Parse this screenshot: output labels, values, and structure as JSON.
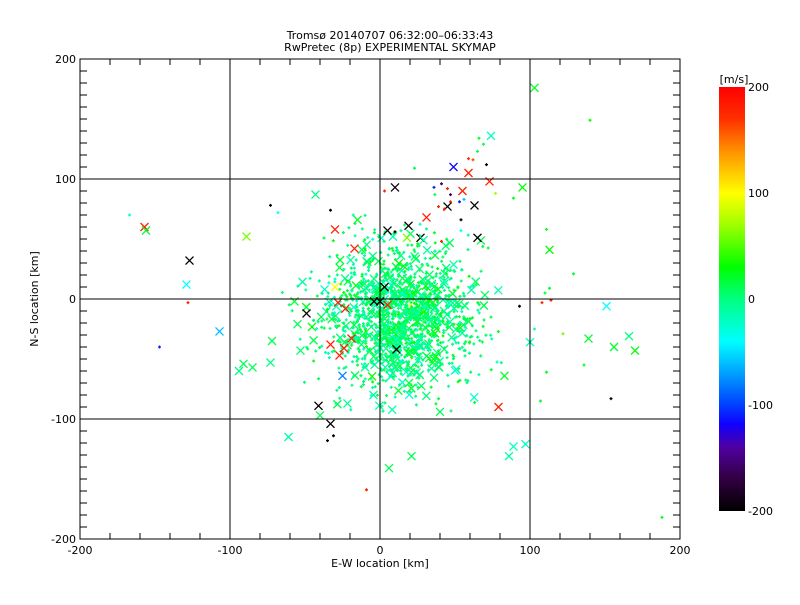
{
  "chart_data": {
    "type": "scatter",
    "title": "Tromsø 20140707 06:32:00–06:33:43",
    "subtitle": "RwPretec (8p) EXPERIMENTAL SKYMAP",
    "xlabel": "E-W location [km]",
    "ylabel": "N-S location [km]",
    "xlim": [
      -200,
      200
    ],
    "ylim": [
      -200,
      200
    ],
    "xticks": [
      "-200",
      "-100",
      "0",
      "100",
      "200"
    ],
    "yticks": [
      "-200",
      "-100",
      "0",
      "100",
      "200"
    ],
    "xtick_values": [
      -200,
      -100,
      0,
      100,
      200
    ],
    "ytick_values": [
      -200,
      -100,
      0,
      100,
      200
    ],
    "grid": true,
    "colorbar": {
      "label": "[m/s]",
      "range": [
        -200,
        200
      ],
      "ticks": [
        "200",
        "100",
        "0",
        "-100",
        "-200"
      ],
      "tick_values": [
        200,
        100,
        0,
        -100,
        -200
      ],
      "colormap": [
        [
          -200,
          "#000000"
        ],
        [
          -170,
          "#300040"
        ],
        [
          -140,
          "#5000a0"
        ],
        [
          -118,
          "#1000ff"
        ],
        [
          -100,
          "#0040ff"
        ],
        [
          -70,
          "#00a0ff"
        ],
        [
          -40,
          "#00ffff"
        ],
        [
          0,
          "#00ff80"
        ],
        [
          30,
          "#00ff00"
        ],
        [
          70,
          "#a0ff00"
        ],
        [
          100,
          "#ffff00"
        ],
        [
          140,
          "#ff9000"
        ],
        [
          170,
          "#ff3000"
        ],
        [
          200,
          "#ff0000"
        ]
      ]
    },
    "points_columns": [
      "x_km",
      "y_km",
      "velocity_mps",
      "marker"
    ],
    "points": [
      [
        -157,
        60,
        180,
        "x"
      ],
      [
        -156,
        57,
        20,
        "x"
      ],
      [
        -127,
        32,
        -200,
        "x"
      ],
      [
        -129,
        12,
        -40,
        "x"
      ],
      [
        -167,
        70,
        -30,
        "+"
      ],
      [
        -43,
        87,
        0,
        "x"
      ],
      [
        -73,
        78,
        -200,
        "+"
      ],
      [
        -68,
        72,
        -40,
        "+"
      ],
      [
        -33,
        74,
        -200,
        "+"
      ],
      [
        -15,
        66,
        20,
        "x"
      ],
      [
        -30,
        58,
        180,
        "x"
      ],
      [
        -89,
        52,
        60,
        "x"
      ],
      [
        -17,
        42,
        180,
        "x"
      ],
      [
        -30,
        10,
        100,
        "x"
      ],
      [
        103,
        176,
        20,
        "x"
      ],
      [
        140,
        149,
        30,
        "+"
      ],
      [
        74,
        136,
        -20,
        "x"
      ],
      [
        66,
        134,
        20,
        "+"
      ],
      [
        69,
        129,
        10,
        "+"
      ],
      [
        65,
        123,
        10,
        "+"
      ],
      [
        59,
        117,
        170,
        "+"
      ],
      [
        62,
        116,
        160,
        "+"
      ],
      [
        49,
        110,
        -115,
        "x"
      ],
      [
        59,
        105,
        180,
        "x"
      ],
      [
        73,
        98,
        180,
        "x"
      ],
      [
        71,
        112,
        -200,
        "+"
      ],
      [
        23,
        109,
        10,
        "+"
      ],
      [
        10,
        93,
        -190,
        "x"
      ],
      [
        36,
        93,
        -110,
        "+"
      ],
      [
        41,
        96,
        -160,
        "+"
      ],
      [
        45,
        92,
        180,
        "+"
      ],
      [
        47,
        87,
        -160,
        "+"
      ],
      [
        55,
        90,
        180,
        "x"
      ],
      [
        3,
        90,
        180,
        "+"
      ],
      [
        95,
        93,
        30,
        "x"
      ],
      [
        77,
        88,
        70,
        "+"
      ],
      [
        89,
        84,
        20,
        "+"
      ],
      [
        53,
        81,
        -110,
        "+"
      ],
      [
        56,
        83,
        -60,
        "+"
      ],
      [
        47,
        81,
        170,
        "+"
      ],
      [
        45,
        77,
        -200,
        "x"
      ],
      [
        43,
        75,
        180,
        "+"
      ],
      [
        39,
        77,
        180,
        "+"
      ],
      [
        63,
        78,
        -200,
        "x"
      ],
      [
        31,
        68,
        180,
        "x"
      ],
      [
        54,
        66,
        -200,
        "+"
      ],
      [
        19,
        61,
        -200,
        "x"
      ],
      [
        5,
        57,
        -200,
        "x"
      ],
      [
        10,
        56,
        -200,
        "+"
      ],
      [
        18,
        51,
        60,
        "x"
      ],
      [
        27,
        51,
        -200,
        "x"
      ],
      [
        29,
        49,
        -10,
        "x"
      ],
      [
        65,
        51,
        -200,
        "x"
      ],
      [
        54,
        57,
        -40,
        "+"
      ],
      [
        41,
        48,
        180,
        "+"
      ],
      [
        111,
        58,
        20,
        "+"
      ],
      [
        113,
        41,
        30,
        "x"
      ],
      [
        129,
        21,
        20,
        "+"
      ],
      [
        113,
        9,
        20,
        "+"
      ],
      [
        110,
        5,
        20,
        "+"
      ],
      [
        -128,
        -3,
        180,
        "+"
      ],
      [
        -107,
        -27,
        -60,
        "x"
      ],
      [
        -147,
        -40,
        -110,
        "+"
      ],
      [
        -72,
        -35,
        10,
        "x"
      ],
      [
        -53,
        -43,
        5,
        "x"
      ],
      [
        -73,
        -53,
        0,
        "x"
      ],
      [
        -91,
        -54,
        10,
        "x"
      ],
      [
        -94,
        -60,
        0,
        "x"
      ],
      [
        -85,
        -57,
        10,
        "x"
      ],
      [
        -55,
        -21,
        10,
        "x"
      ],
      [
        -57,
        -2,
        20,
        "x"
      ],
      [
        -49,
        -12,
        -200,
        "x"
      ],
      [
        -33,
        -38,
        180,
        "x"
      ],
      [
        -27,
        -47,
        180,
        "x"
      ],
      [
        -24,
        -41,
        180,
        "x"
      ],
      [
        -19,
        -33,
        180,
        "x"
      ],
      [
        -28,
        -3,
        180,
        "x"
      ],
      [
        -23,
        -8,
        180,
        "x"
      ],
      [
        -25,
        -64,
        -80,
        "x"
      ],
      [
        -41,
        -89,
        -200,
        "x"
      ],
      [
        -33,
        -104,
        -200,
        "x"
      ],
      [
        -31,
        -114,
        -200,
        "+"
      ],
      [
        -35,
        -118,
        -200,
        "+"
      ],
      [
        -61,
        -115,
        -10,
        "x"
      ],
      [
        -9,
        -159,
        180,
        "+"
      ],
      [
        -40,
        -97,
        10,
        "x"
      ],
      [
        151,
        -6,
        -40,
        "x"
      ],
      [
        108,
        -3,
        180,
        "+"
      ],
      [
        114,
        -1,
        180,
        "+"
      ],
      [
        93,
        -6,
        -200,
        "+"
      ],
      [
        122,
        -29,
        60,
        "+"
      ],
      [
        139,
        -33,
        20,
        "x"
      ],
      [
        166,
        -31,
        0,
        "x"
      ],
      [
        156,
        -40,
        20,
        "x"
      ],
      [
        170,
        -43,
        30,
        "x"
      ],
      [
        136,
        -55,
        20,
        "+"
      ],
      [
        111,
        -61,
        20,
        "+"
      ],
      [
        107,
        -85,
        20,
        "+"
      ],
      [
        154,
        -83,
        -200,
        "+"
      ],
      [
        100,
        -36,
        -20,
        "x"
      ],
      [
        103,
        -25,
        -10,
        "+"
      ],
      [
        79,
        -90,
        180,
        "x"
      ],
      [
        83,
        -64,
        20,
        "x"
      ],
      [
        188,
        -182,
        30,
        "+"
      ],
      [
        89,
        -123,
        -20,
        "x"
      ],
      [
        97,
        -121,
        -20,
        "x"
      ],
      [
        86,
        -131,
        -10,
        "x"
      ],
      [
        21,
        -131,
        10,
        "x"
      ],
      [
        6,
        -141,
        10,
        "x"
      ],
      [
        11,
        -42,
        -200,
        "x"
      ],
      [
        40,
        -94,
        10,
        "x"
      ],
      [
        3,
        10,
        -200,
        "x"
      ],
      [
        0,
        -2,
        -200,
        "x"
      ],
      [
        -4,
        -2,
        -200,
        "x"
      ],
      [
        20,
        -5,
        100,
        "+"
      ],
      [
        5,
        -5,
        180,
        "x"
      ]
    ],
    "cluster": {
      "count": 1500,
      "center_km": [
        12,
        -15
      ],
      "sd_km": [
        24,
        28
      ],
      "velocity_mean": 2,
      "velocity_sd": 14,
      "fraction_x_markers": 0.18,
      "seed": 7
    }
  }
}
